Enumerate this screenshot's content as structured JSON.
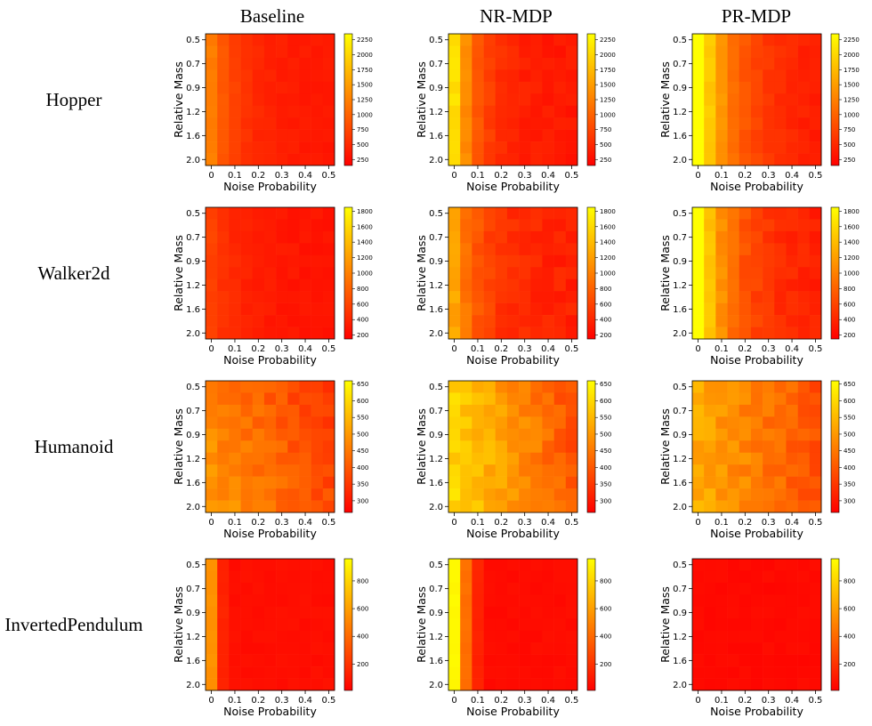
{
  "chart_data": {
    "type": "heatmap",
    "columns": [
      "Baseline",
      "NR-MDP",
      "PR-MDP"
    ],
    "rows": [
      "Hopper",
      "Walker2d",
      "Humanoid",
      "InvertedPendulum"
    ],
    "xlabel": "Noise Probability",
    "ylabel": "Relative Mass",
    "xticks": [
      "0",
      "0.1",
      "0.2",
      "0.3",
      "0.4",
      "0.5"
    ],
    "yticks": [
      "0.5",
      "0.7",
      "0.9",
      "1.2",
      "1.6",
      "2.0"
    ],
    "grid_size": [
      11,
      11
    ],
    "colormap": "autumn_r",
    "colormap_colors": {
      "low": "#ff0000",
      "high": "#ffff00"
    },
    "colorbars": [
      {
        "row": "Hopper",
        "range": [
          150,
          2350
        ],
        "ticks": [
          "2250",
          "2000",
          "1750",
          "1500",
          "1250",
          "1000",
          "750",
          "500",
          "250"
        ]
      },
      {
        "row": "Walker2d",
        "range": [
          150,
          1850
        ],
        "ticks": [
          "1800",
          "1600",
          "1400",
          "1200",
          "1000",
          "800",
          "600",
          "400",
          "200"
        ]
      },
      {
        "row": "Humanoid",
        "range": [
          265,
          660
        ],
        "ticks": [
          "650",
          "600",
          "550",
          "500",
          "450",
          "400",
          "350",
          "300"
        ]
      },
      {
        "row": "InvertedPendulum",
        "range": [
          10,
          960
        ],
        "ticks": [
          "800",
          "600",
          "400",
          "200"
        ]
      }
    ]
  }
}
